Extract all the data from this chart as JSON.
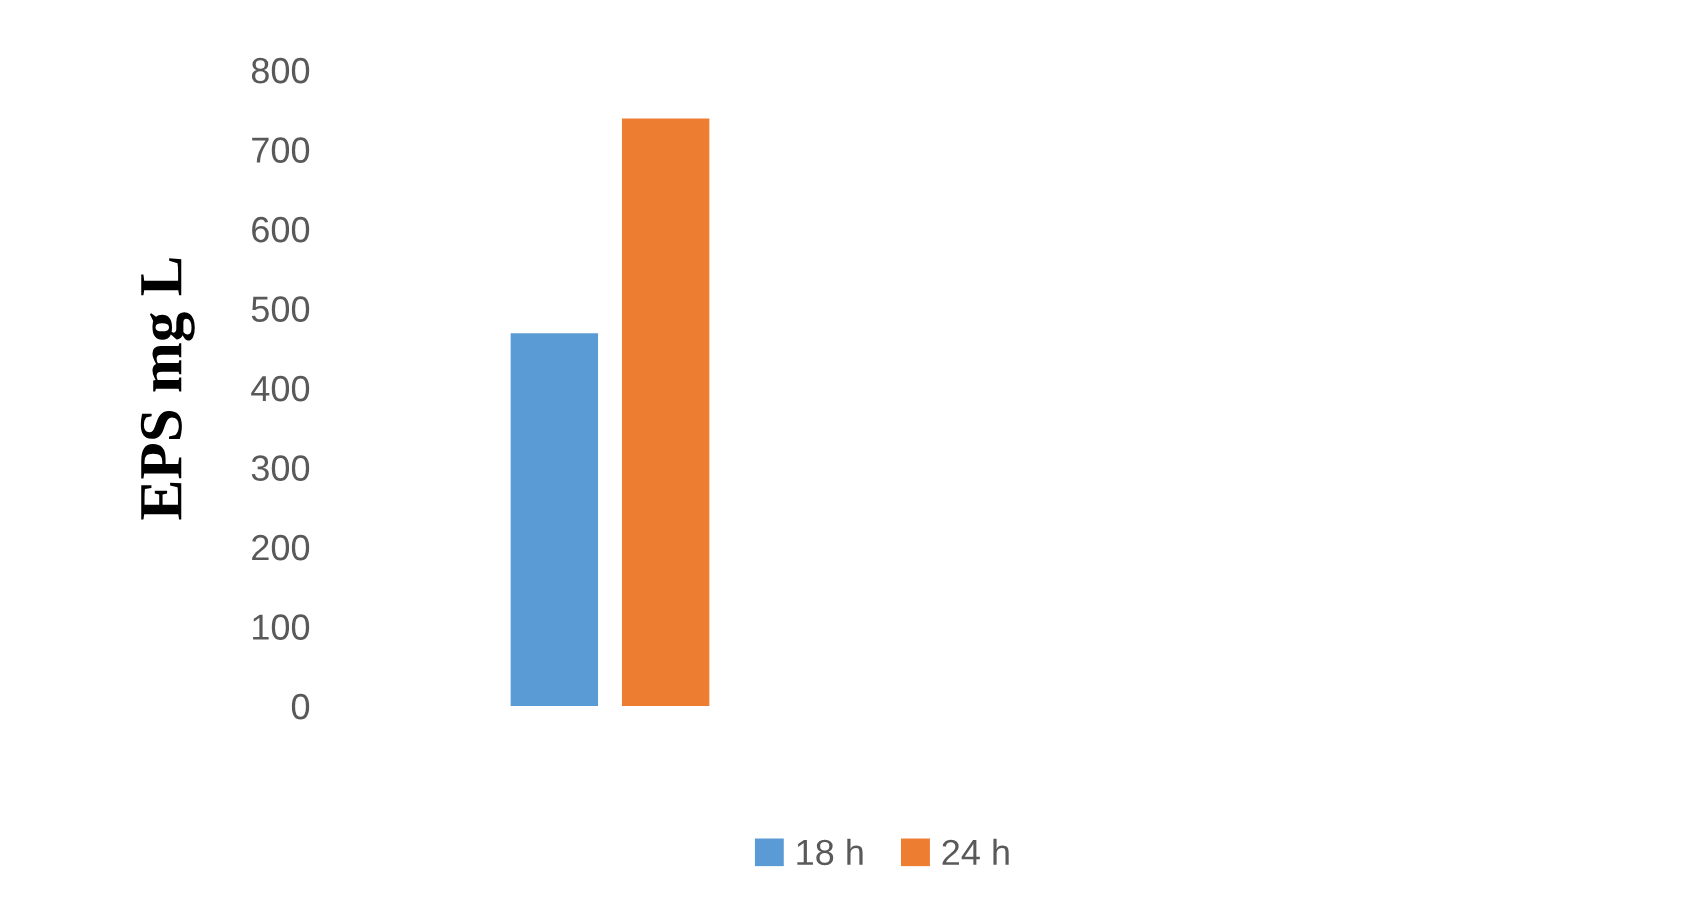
{
  "chart_data": {
    "type": "bar",
    "ylabel": "EPS mg L",
    "categories": [
      null
    ],
    "series": [
      {
        "name": "18 h",
        "color": "#5b9bd5",
        "values": [
          469
        ]
      },
      {
        "name": "24 h",
        "color": "#ed7d31",
        "values": [
          739
        ]
      }
    ],
    "ylim": [
      0,
      800
    ],
    "yticks": [
      0,
      100,
      200,
      300,
      400,
      500,
      600,
      700,
      800
    ],
    "grid": false,
    "legend": "bottom"
  }
}
